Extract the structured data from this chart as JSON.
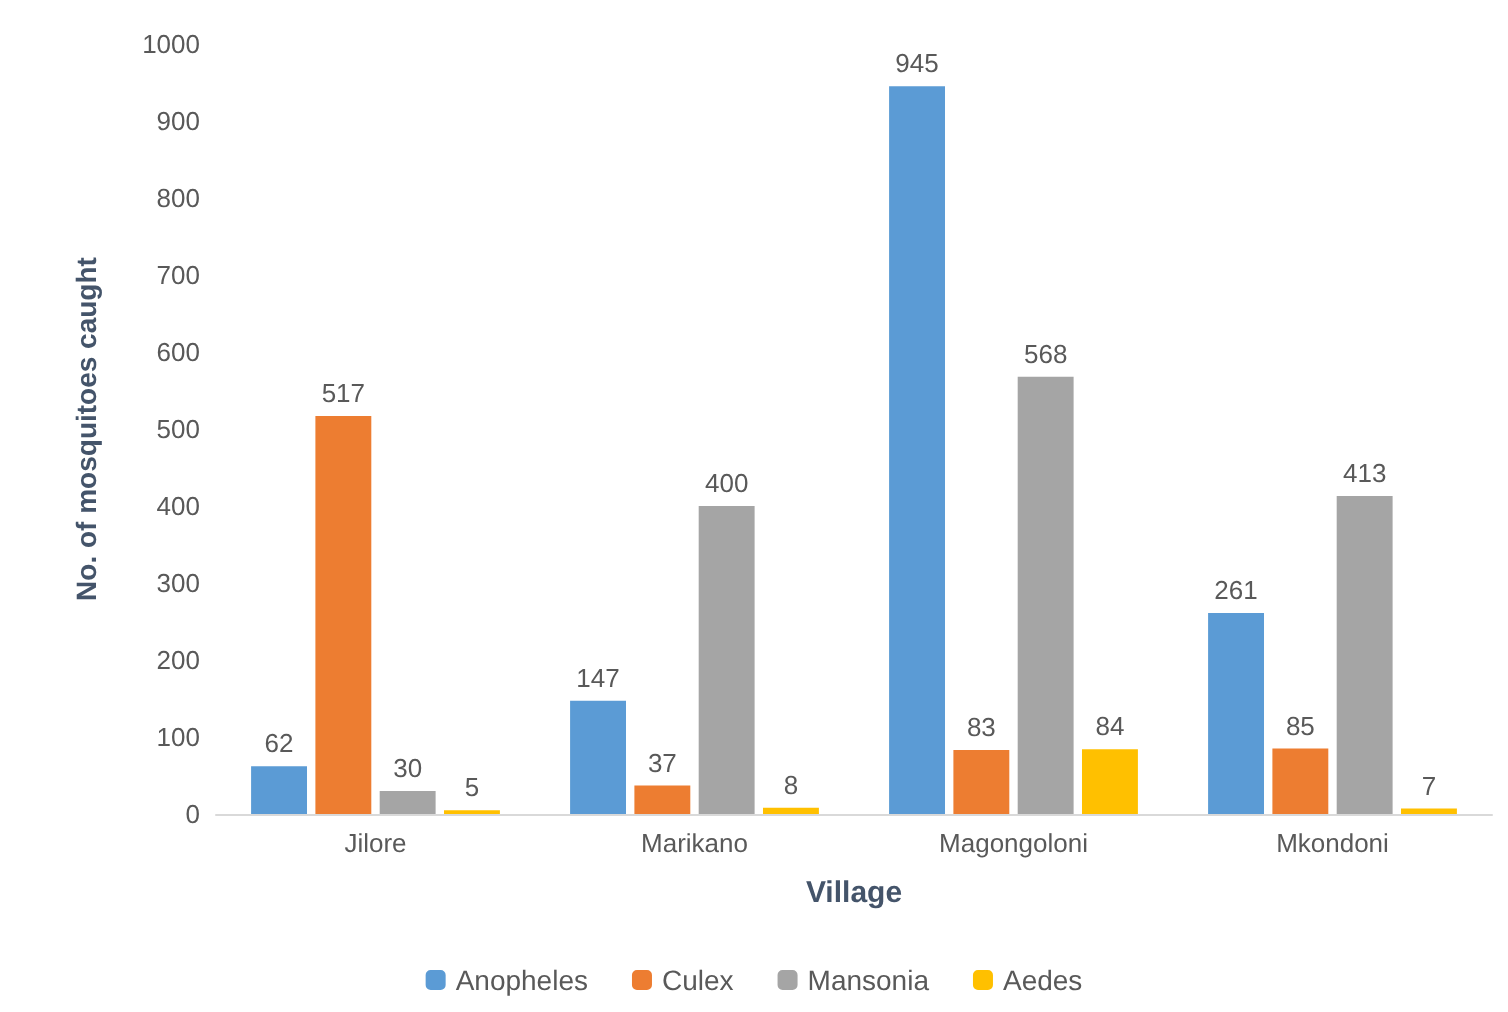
{
  "chart_data": {
    "type": "bar",
    "xlabel": "Village",
    "ylabel": "No. of mosquitoes caught",
    "categories": [
      "Jilore",
      "Marikano",
      "Magongoloni",
      "Mkondoni"
    ],
    "series": [
      {
        "name": "Anopheles",
        "color": "#5b9bd5",
        "values": [
          62,
          147,
          945,
          261
        ]
      },
      {
        "name": "Culex",
        "color": "#ed7d31",
        "values": [
          517,
          37,
          83,
          85
        ]
      },
      {
        "name": "Mansonia",
        "color": "#a5a5a5",
        "values": [
          30,
          400,
          568,
          413
        ]
      },
      {
        "name": "Aedes",
        "color": "#ffc000",
        "values": [
          5,
          8,
          84,
          7
        ]
      }
    ],
    "ylim": [
      0,
      1000
    ],
    "yticks": [
      0,
      100,
      200,
      300,
      400,
      500,
      600,
      700,
      800,
      900,
      1000
    ],
    "data_labels": true,
    "grid": false,
    "legend": "bottom"
  }
}
